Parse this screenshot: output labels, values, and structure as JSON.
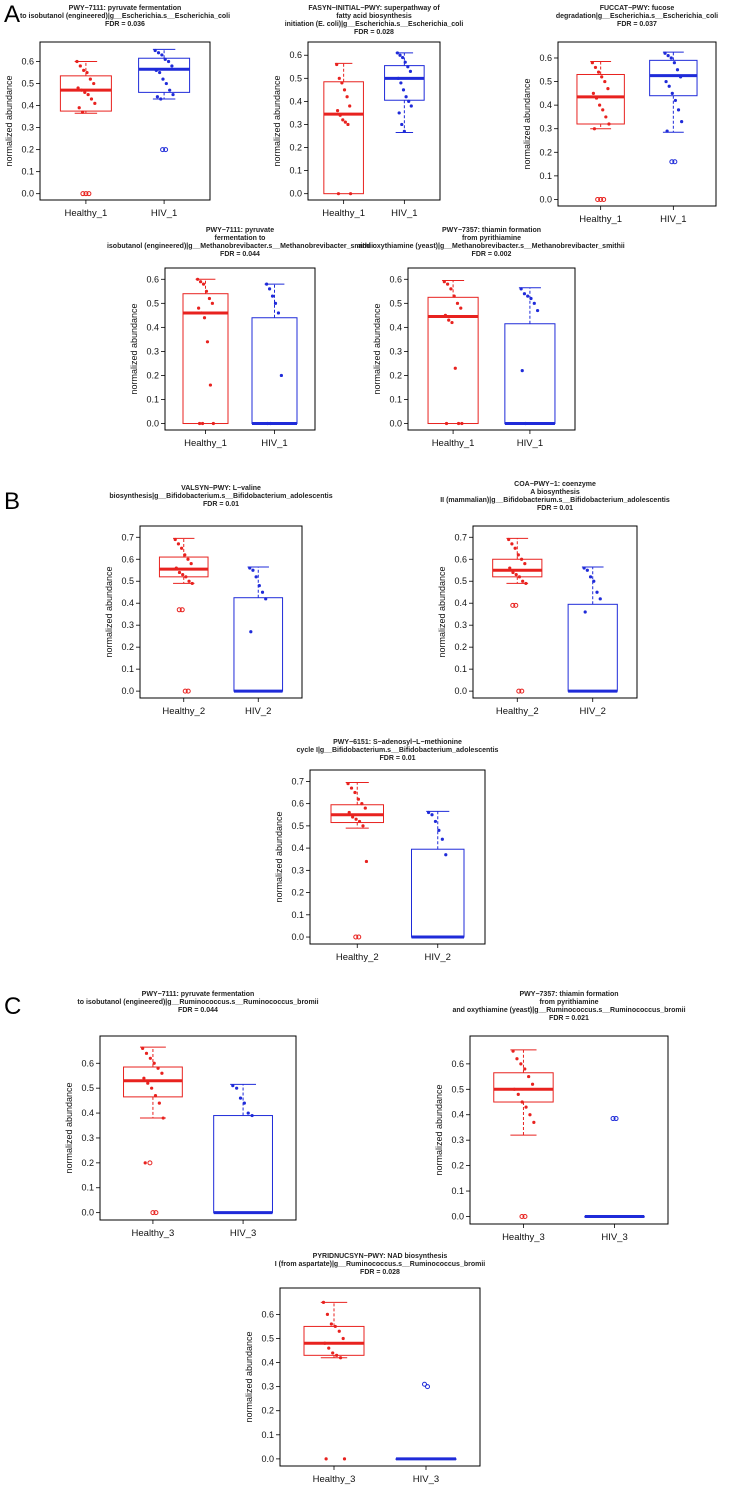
{
  "panel_labels": [
    "A",
    "B",
    "C"
  ],
  "colors": {
    "healthy": "#e8221f",
    "hiv": "#1f2bd9",
    "axis": "#000000"
  },
  "chart_data": [
    {
      "type": "box",
      "panel": "A",
      "title": [
        "PWY−7111: pyruvate fermentation",
        "to isobutanol (engineered)|g__Escherichia.s__Escherichia_coli",
        "FDR = 0.036"
      ],
      "ylabel": "normalized abundance",
      "ylim": [
        0,
        0.66
      ],
      "yticks": [
        0.0,
        0.1,
        0.2,
        0.3,
        0.4,
        0.5,
        0.6
      ],
      "categories": [
        "Healthy_1",
        "HIV_1"
      ],
      "boxes": [
        {
          "q1": 0.375,
          "median": 0.47,
          "q3": 0.535,
          "wlo": 0.365,
          "whi": 0.6,
          "points": [
            0.6,
            0.58,
            0.56,
            0.55,
            0.52,
            0.5,
            0.48,
            0.47,
            0.46,
            0.45,
            0.43,
            0.41,
            0.39,
            0.37
          ],
          "outliers": [
            0,
            0,
            0
          ]
        },
        {
          "q1": 0.46,
          "median": 0.565,
          "q3": 0.615,
          "wlo": 0.43,
          "whi": 0.655,
          "points": [
            0.65,
            0.64,
            0.63,
            0.61,
            0.6,
            0.58,
            0.56,
            0.55,
            0.52,
            0.5,
            0.47,
            0.45,
            0.44,
            0.43
          ],
          "outliers": [
            0.2,
            0.2
          ]
        }
      ]
    },
    {
      "type": "box",
      "panel": "A",
      "title": [
        "FASYN−INITIAL−PWY: superpathway of",
        "fatty acid biosynthesis",
        "initiation (E. coli)|g__Escherichia.s__Escherichia_coli",
        "FDR = 0.028"
      ],
      "ylabel": "normalized abundance",
      "ylim": [
        0,
        0.63
      ],
      "yticks": [
        0.0,
        0.1,
        0.2,
        0.3,
        0.4,
        0.5,
        0.6
      ],
      "categories": [
        "Healthy_1",
        "HIV_1"
      ],
      "boxes": [
        {
          "q1": 0.0,
          "median": 0.345,
          "q3": 0.485,
          "wlo": 0.0,
          "whi": 0.565,
          "points": [
            0.56,
            0.5,
            0.48,
            0.45,
            0.42,
            0.38,
            0.36,
            0.34,
            0.32,
            0.31,
            0.3,
            0.0,
            0.0
          ],
          "outliers": []
        },
        {
          "q1": 0.405,
          "median": 0.5,
          "q3": 0.555,
          "wlo": 0.265,
          "whi": 0.61,
          "points": [
            0.61,
            0.6,
            0.59,
            0.57,
            0.55,
            0.53,
            0.5,
            0.48,
            0.45,
            0.42,
            0.4,
            0.38,
            0.35,
            0.3,
            0.27
          ],
          "outliers": []
        }
      ]
    },
    {
      "type": "box",
      "panel": "A",
      "title": [
        "FUCCAT−PWY: fucose",
        "degradation|g__Escherichia.s__Escherichia_coli",
        "FDR = 0.037"
      ],
      "ylabel": "normalized abundance",
      "ylim": [
        0,
        0.64
      ],
      "yticks": [
        0.0,
        0.1,
        0.2,
        0.3,
        0.4,
        0.5,
        0.6
      ],
      "categories": [
        "Healthy_1",
        "HIV_1"
      ],
      "boxes": [
        {
          "q1": 0.32,
          "median": 0.435,
          "q3": 0.53,
          "wlo": 0.3,
          "whi": 0.585,
          "points": [
            0.58,
            0.56,
            0.54,
            0.52,
            0.5,
            0.47,
            0.45,
            0.43,
            0.4,
            0.38,
            0.35,
            0.32,
            0.3
          ],
          "outliers": [
            0,
            0,
            0
          ]
        },
        {
          "q1": 0.44,
          "median": 0.525,
          "q3": 0.59,
          "wlo": 0.285,
          "whi": 0.625,
          "points": [
            0.62,
            0.61,
            0.6,
            0.58,
            0.55,
            0.52,
            0.5,
            0.48,
            0.45,
            0.42,
            0.38,
            0.33,
            0.29
          ],
          "outliers": [
            0.16,
            0.16
          ]
        }
      ]
    },
    {
      "type": "box",
      "panel": "A",
      "title": [
        "PWY−7111: pyruvate",
        "fermentation to",
        "isobutanol (engineered)|g__Methanobrevibacter.s__Methanobrevibacter_smithii",
        "FDR = 0.044"
      ],
      "ylabel": "normalized abundance",
      "ylim": [
        0,
        0.62
      ],
      "yticks": [
        0.0,
        0.1,
        0.2,
        0.3,
        0.4,
        0.5,
        0.6
      ],
      "categories": [
        "Healthy_1",
        "HIV_1"
      ],
      "boxes": [
        {
          "q1": 0.0,
          "median": 0.46,
          "q3": 0.54,
          "wlo": 0.0,
          "whi": 0.6,
          "points": [
            0.6,
            0.59,
            0.58,
            0.55,
            0.52,
            0.5,
            0.48,
            0.46,
            0.44,
            0.34,
            0.16,
            0.0,
            0.0,
            0.0
          ],
          "outliers": []
        },
        {
          "q1": 0.0,
          "median": 0.0,
          "q3": 0.44,
          "wlo": 0.0,
          "whi": 0.58,
          "points": [
            0.58,
            0.56,
            0.53,
            0.5,
            0.46,
            0.2,
            0.0,
            0.0
          ],
          "outliers": []
        }
      ]
    },
    {
      "type": "box",
      "panel": "A",
      "title": [
        "PWY−7357: thiamin formation",
        "from pyrithiamine",
        "and oxythiamine (yeast)|g__Methanobrevibacter.s__Methanobrevibacter_smithii",
        "FDR = 0.002"
      ],
      "ylabel": "normalized abundance",
      "ylim": [
        0,
        0.62
      ],
      "yticks": [
        0.0,
        0.1,
        0.2,
        0.3,
        0.4,
        0.5,
        0.6
      ],
      "categories": [
        "Healthy_1",
        "HIV_1"
      ],
      "boxes": [
        {
          "q1": 0.0,
          "median": 0.445,
          "q3": 0.525,
          "wlo": 0.0,
          "whi": 0.595,
          "points": [
            0.59,
            0.58,
            0.56,
            0.53,
            0.5,
            0.48,
            0.45,
            0.43,
            0.42,
            0.23,
            0.0,
            0.0,
            0.0
          ],
          "outliers": []
        },
        {
          "q1": 0.0,
          "median": 0.0,
          "q3": 0.415,
          "wlo": 0.0,
          "whi": 0.565,
          "points": [
            0.56,
            0.54,
            0.53,
            0.52,
            0.5,
            0.47,
            0.22,
            0.0
          ],
          "outliers": []
        }
      ]
    },
    {
      "type": "box",
      "panel": "B",
      "title": [
        "VALSYN−PWY: L−valine",
        "biosynthesis|g__Bifidobacterium.s__Bifidobacterium_adolescentis",
        "FDR = 0.01"
      ],
      "ylabel": "normalized abundance",
      "ylim": [
        0,
        0.72
      ],
      "yticks": [
        0.0,
        0.1,
        0.2,
        0.3,
        0.4,
        0.5,
        0.6,
        0.7
      ],
      "categories": [
        "Healthy_2",
        "HIV_2"
      ],
      "boxes": [
        {
          "q1": 0.52,
          "median": 0.555,
          "q3": 0.61,
          "wlo": 0.49,
          "whi": 0.695,
          "points": [
            0.69,
            0.67,
            0.65,
            0.62,
            0.6,
            0.58,
            0.56,
            0.54,
            0.53,
            0.52,
            0.5,
            0.49
          ],
          "outliers": [
            0.37,
            0.37,
            0,
            0
          ]
        },
        {
          "q1": 0.0,
          "median": 0.0,
          "q3": 0.425,
          "wlo": 0.0,
          "whi": 0.565,
          "points": [
            0.56,
            0.55,
            0.52,
            0.48,
            0.45,
            0.42,
            0.27
          ],
          "outliers": []
        }
      ]
    },
    {
      "type": "box",
      "panel": "B",
      "title": [
        "COA−PWY−1: coenzyme",
        "A biosynthesis",
        "II (mammalian)|g__Bifidobacterium.s__Bifidobacterium_adolescentis",
        "FDR = 0.01"
      ],
      "ylabel": "normalized abundance",
      "ylim": [
        0,
        0.72
      ],
      "yticks": [
        0.0,
        0.1,
        0.2,
        0.3,
        0.4,
        0.5,
        0.6,
        0.7
      ],
      "categories": [
        "Healthy_2",
        "HIV_2"
      ],
      "boxes": [
        {
          "q1": 0.52,
          "median": 0.55,
          "q3": 0.6,
          "wlo": 0.49,
          "whi": 0.695,
          "points": [
            0.69,
            0.67,
            0.65,
            0.62,
            0.6,
            0.58,
            0.56,
            0.54,
            0.53,
            0.52,
            0.5,
            0.49
          ],
          "outliers": [
            0.39,
            0.39,
            0,
            0
          ]
        },
        {
          "q1": 0.0,
          "median": 0.0,
          "q3": 0.395,
          "wlo": 0.0,
          "whi": 0.565,
          "points": [
            0.56,
            0.55,
            0.52,
            0.5,
            0.45,
            0.42,
            0.36
          ],
          "outliers": []
        }
      ]
    },
    {
      "type": "box",
      "panel": "B",
      "title": [
        "PWY−6151: S−adenosyl−L−methionine",
        "cycle I|g__Bifidobacterium.s__Bifidobacterium_adolescentis",
        "FDR = 0.01"
      ],
      "ylabel": "normalized abundance",
      "ylim": [
        0,
        0.72
      ],
      "yticks": [
        0.0,
        0.1,
        0.2,
        0.3,
        0.4,
        0.5,
        0.6,
        0.7
      ],
      "categories": [
        "Healthy_2",
        "HIV_2"
      ],
      "boxes": [
        {
          "q1": 0.515,
          "median": 0.55,
          "q3": 0.595,
          "wlo": 0.49,
          "whi": 0.695,
          "points": [
            0.69,
            0.67,
            0.65,
            0.62,
            0.6,
            0.58,
            0.56,
            0.54,
            0.53,
            0.52,
            0.5,
            0.34
          ],
          "outliers": [
            0,
            0
          ]
        },
        {
          "q1": 0.0,
          "median": 0.0,
          "q3": 0.395,
          "wlo": 0.0,
          "whi": 0.565,
          "points": [
            0.56,
            0.55,
            0.52,
            0.48,
            0.44,
            0.37
          ],
          "outliers": []
        }
      ]
    },
    {
      "type": "box",
      "panel": "C",
      "title": [
        "PWY−7111: pyruvate fermentation",
        "to isobutanol (engineered)|g__Ruminococcus.s__Ruminococcus_bromii",
        "FDR = 0.044"
      ],
      "ylabel": "normalized abundance",
      "ylim": [
        0,
        0.68
      ],
      "yticks": [
        0.0,
        0.1,
        0.2,
        0.3,
        0.4,
        0.5,
        0.6
      ],
      "categories": [
        "Healthy_3",
        "HIV_3"
      ],
      "boxes": [
        {
          "q1": 0.465,
          "median": 0.53,
          "q3": 0.585,
          "wlo": 0.38,
          "whi": 0.665,
          "points": [
            0.66,
            0.64,
            0.62,
            0.6,
            0.58,
            0.56,
            0.54,
            0.52,
            0.5,
            0.47,
            0.44,
            0.38,
            0.2
          ],
          "outliers": [
            0.2,
            0,
            0
          ]
        },
        {
          "q1": 0.0,
          "median": 0.0,
          "q3": 0.39,
          "wlo": 0.0,
          "whi": 0.515,
          "points": [
            0.51,
            0.5,
            0.46,
            0.44,
            0.4,
            0.39
          ],
          "outliers": []
        }
      ]
    },
    {
      "type": "box",
      "panel": "C",
      "title": [
        "PWY−7357: thiamin formation",
        "from pyrithiamine",
        "and oxythiamine (yeast)|g__Ruminococcus.s__Ruminococcus_bromii",
        "FDR = 0.021"
      ],
      "ylabel": "normalized abundance",
      "ylim": [
        0,
        0.68
      ],
      "yticks": [
        0.0,
        0.1,
        0.2,
        0.3,
        0.4,
        0.5,
        0.6
      ],
      "categories": [
        "Healthy_3",
        "HIV_3"
      ],
      "boxes": [
        {
          "q1": 0.45,
          "median": 0.5,
          "q3": 0.565,
          "wlo": 0.32,
          "whi": 0.655,
          "points": [
            0.65,
            0.62,
            0.6,
            0.58,
            0.55,
            0.52,
            0.5,
            0.48,
            0.45,
            0.43,
            0.4,
            0.37
          ],
          "outliers": [
            0,
            0
          ]
        },
        {
          "q1": 0.0,
          "median": 0.0,
          "q3": 0.0,
          "wlo": 0.0,
          "whi": 0.0,
          "points": [],
          "outliers": [
            0.385,
            0.385
          ]
        }
      ]
    },
    {
      "type": "box",
      "panel": "C",
      "title": [
        "PYRIDNUCSYN−PWY: NAD biosynthesis",
        "I (from aspartate)|g__Ruminococcus.s__Ruminococcus_bromii",
        "FDR = 0.028"
      ],
      "ylabel": "normalized abundance",
      "ylim": [
        0,
        0.68
      ],
      "yticks": [
        0.0,
        0.1,
        0.2,
        0.3,
        0.4,
        0.5,
        0.6
      ],
      "categories": [
        "Healthy_3",
        "HIV_3"
      ],
      "boxes": [
        {
          "q1": 0.43,
          "median": 0.48,
          "q3": 0.55,
          "wlo": 0.42,
          "whi": 0.65,
          "points": [
            0.65,
            0.6,
            0.56,
            0.55,
            0.53,
            0.5,
            0.48,
            0.46,
            0.44,
            0.43,
            0.42,
            0.0,
            0.0
          ],
          "outliers": []
        },
        {
          "q1": 0.0,
          "median": 0.0,
          "q3": 0.0,
          "wlo": 0.0,
          "whi": 0.0,
          "points": [],
          "outliers": [
            0.31,
            0.3
          ]
        }
      ]
    }
  ]
}
